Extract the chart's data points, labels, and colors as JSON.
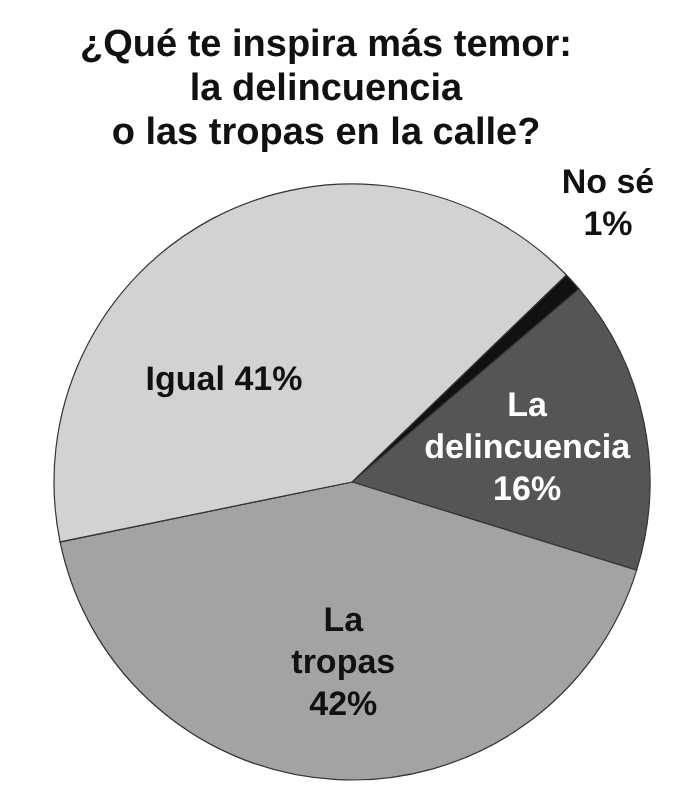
{
  "chart_data": {
    "type": "pie",
    "title": "¿Qué te inspira más temor:\nla delincuencia\no las tropas en la calle?",
    "categories": [
      "No sé",
      "La delincuencia",
      "La tropas",
      "Igual"
    ],
    "values": [
      1,
      16,
      42,
      41
    ],
    "colors": [
      "#111111",
      "#555555",
      "#a3a3a3",
      "#d2d2d2"
    ],
    "value_labels": [
      "1%",
      "16%",
      "42%",
      "41%"
    ]
  }
}
